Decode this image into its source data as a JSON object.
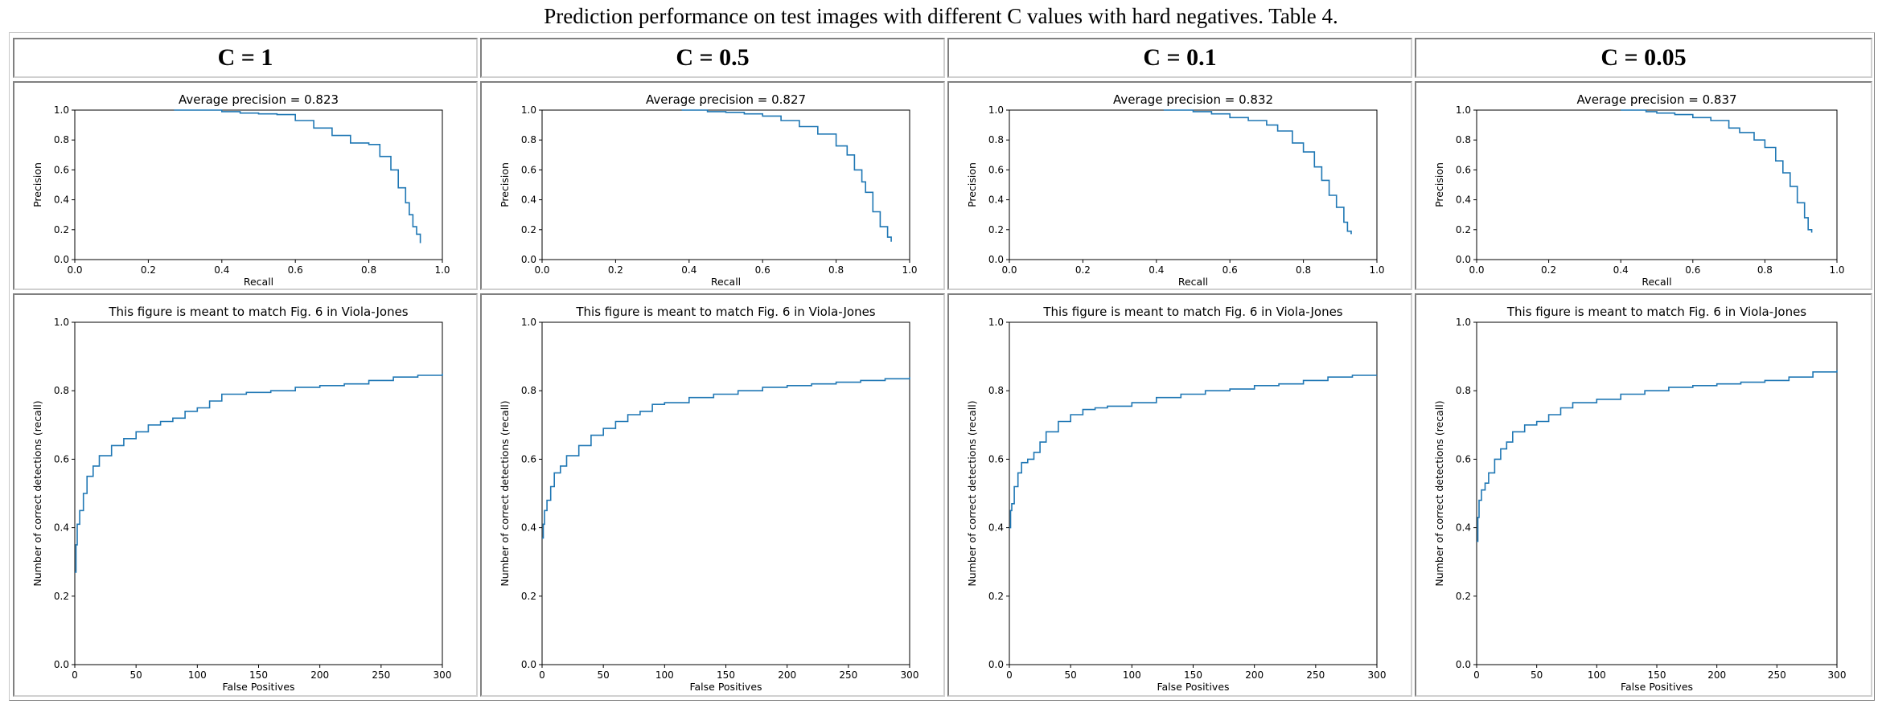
{
  "caption": "Prediction performance on test images with different C values with hard negatives. Table 4.",
  "headers": [
    "C = 1",
    "C = 0.5",
    "C = 0.1",
    "C = 0.05"
  ],
  "colors": {
    "series": "#1f77b4"
  },
  "chart_data": [
    {
      "type": "line",
      "column": "C = 1",
      "title": "Average precision = 0.823",
      "xlabel": "Recall",
      "ylabel": "Precision",
      "xlim": [
        0,
        1
      ],
      "ylim": [
        0,
        1
      ],
      "xticks": [
        "0.0",
        "0.2",
        "0.4",
        "0.6",
        "0.8",
        "1.0"
      ],
      "yticks": [
        "0.0",
        "0.2",
        "0.4",
        "0.6",
        "0.8",
        "1.0"
      ],
      "x": [
        0.27,
        0.35,
        0.4,
        0.45,
        0.5,
        0.55,
        0.6,
        0.65,
        0.7,
        0.75,
        0.8,
        0.83,
        0.86,
        0.88,
        0.9,
        0.91,
        0.92,
        0.93,
        0.94
      ],
      "y": [
        1.0,
        1.0,
        0.99,
        0.98,
        0.975,
        0.97,
        0.93,
        0.88,
        0.83,
        0.78,
        0.77,
        0.69,
        0.6,
        0.48,
        0.38,
        0.3,
        0.22,
        0.17,
        0.11
      ]
    },
    {
      "type": "line",
      "column": "C = 0.5",
      "title": "Average precision = 0.827",
      "xlabel": "Recall",
      "ylabel": "Precision",
      "xlim": [
        0,
        1
      ],
      "ylim": [
        0,
        1
      ],
      "xticks": [
        "0.0",
        "0.2",
        "0.4",
        "0.6",
        "0.8",
        "1.0"
      ],
      "yticks": [
        "0.0",
        "0.2",
        "0.4",
        "0.6",
        "0.8",
        "1.0"
      ],
      "x": [
        0.38,
        0.45,
        0.5,
        0.55,
        0.6,
        0.65,
        0.7,
        0.75,
        0.8,
        0.83,
        0.85,
        0.87,
        0.88,
        0.9,
        0.92,
        0.94,
        0.95
      ],
      "y": [
        1.0,
        0.99,
        0.985,
        0.975,
        0.96,
        0.93,
        0.89,
        0.84,
        0.76,
        0.7,
        0.6,
        0.52,
        0.45,
        0.32,
        0.22,
        0.15,
        0.12
      ]
    },
    {
      "type": "line",
      "column": "C = 0.1",
      "title": "Average precision = 0.832",
      "xlabel": "Recall",
      "ylabel": "Precision",
      "xlim": [
        0,
        1
      ],
      "ylim": [
        0,
        1
      ],
      "xticks": [
        "0.0",
        "0.2",
        "0.4",
        "0.6",
        "0.8",
        "1.0"
      ],
      "yticks": [
        "0.0",
        "0.2",
        "0.4",
        "0.6",
        "0.8",
        "1.0"
      ],
      "x": [
        0.42,
        0.5,
        0.55,
        0.6,
        0.65,
        0.7,
        0.73,
        0.77,
        0.8,
        0.83,
        0.85,
        0.87,
        0.89,
        0.91,
        0.92,
        0.93
      ],
      "y": [
        1.0,
        0.99,
        0.975,
        0.95,
        0.93,
        0.9,
        0.86,
        0.78,
        0.72,
        0.62,
        0.53,
        0.43,
        0.35,
        0.25,
        0.19,
        0.17
      ]
    },
    {
      "type": "line",
      "column": "C = 0.05",
      "title": "Average precision = 0.837",
      "xlabel": "Recall",
      "ylabel": "Precision",
      "xlim": [
        0,
        1
      ],
      "ylim": [
        0,
        1
      ],
      "xticks": [
        "0.0",
        "0.2",
        "0.4",
        "0.6",
        "0.8",
        "1.0"
      ],
      "yticks": [
        "0.0",
        "0.2",
        "0.4",
        "0.6",
        "0.8",
        "1.0"
      ],
      "x": [
        0.4,
        0.47,
        0.5,
        0.55,
        0.6,
        0.65,
        0.7,
        0.73,
        0.77,
        0.8,
        0.83,
        0.85,
        0.87,
        0.89,
        0.91,
        0.92,
        0.93
      ],
      "y": [
        1.0,
        0.99,
        0.98,
        0.97,
        0.95,
        0.93,
        0.88,
        0.85,
        0.8,
        0.75,
        0.66,
        0.58,
        0.49,
        0.38,
        0.28,
        0.2,
        0.18
      ]
    },
    {
      "type": "line",
      "column": "C = 1",
      "title": "This figure is meant to match Fig. 6 in Viola-Jones",
      "xlabel": "False Positives",
      "ylabel": "Number of correct detections (recall)",
      "xlim": [
        0,
        300
      ],
      "ylim": [
        0,
        1
      ],
      "xticks": [
        "0",
        "50",
        "100",
        "150",
        "200",
        "250",
        "300"
      ],
      "yticks": [
        "0.0",
        "0.2",
        "0.4",
        "0.6",
        "0.8",
        "1.0"
      ],
      "x": [
        0,
        1,
        2,
        4,
        7,
        10,
        15,
        20,
        30,
        40,
        50,
        60,
        70,
        80,
        90,
        100,
        110,
        120,
        140,
        160,
        180,
        200,
        220,
        240,
        260,
        280,
        300
      ],
      "y": [
        0.27,
        0.35,
        0.41,
        0.45,
        0.5,
        0.55,
        0.58,
        0.61,
        0.64,
        0.66,
        0.68,
        0.7,
        0.71,
        0.72,
        0.74,
        0.75,
        0.77,
        0.79,
        0.795,
        0.8,
        0.81,
        0.815,
        0.82,
        0.83,
        0.84,
        0.845,
        0.85
      ]
    },
    {
      "type": "line",
      "column": "C = 0.5",
      "title": "This figure is meant to match Fig. 6 in Viola-Jones",
      "xlabel": "False Positives",
      "ylabel": "Number of correct detections (recall)",
      "xlim": [
        0,
        300
      ],
      "ylim": [
        0,
        1
      ],
      "xticks": [
        "0",
        "50",
        "100",
        "150",
        "200",
        "250",
        "300"
      ],
      "yticks": [
        "0.0",
        "0.2",
        "0.4",
        "0.6",
        "0.8",
        "1.0"
      ],
      "x": [
        0,
        1,
        2,
        4,
        7,
        10,
        15,
        20,
        30,
        40,
        50,
        60,
        70,
        80,
        90,
        100,
        120,
        140,
        160,
        180,
        200,
        220,
        240,
        260,
        280,
        300
      ],
      "y": [
        0.37,
        0.41,
        0.45,
        0.48,
        0.52,
        0.56,
        0.58,
        0.61,
        0.64,
        0.67,
        0.69,
        0.71,
        0.73,
        0.74,
        0.76,
        0.765,
        0.78,
        0.79,
        0.8,
        0.81,
        0.815,
        0.82,
        0.825,
        0.83,
        0.835,
        0.84
      ]
    },
    {
      "type": "line",
      "column": "C = 0.1",
      "title": "This figure is meant to match Fig. 6 in Viola-Jones",
      "xlabel": "False Positives",
      "ylabel": "Number of correct detections (recall)",
      "xlim": [
        0,
        300
      ],
      "ylim": [
        0,
        1
      ],
      "xticks": [
        "0",
        "50",
        "100",
        "150",
        "200",
        "250",
        "300"
      ],
      "yticks": [
        "0.0",
        "0.2",
        "0.4",
        "0.6",
        "0.8",
        "1.0"
      ],
      "x": [
        0,
        1,
        2,
        4,
        7,
        10,
        15,
        20,
        25,
        30,
        40,
        50,
        60,
        70,
        80,
        100,
        120,
        140,
        160,
        180,
        200,
        220,
        240,
        260,
        280,
        300
      ],
      "y": [
        0.4,
        0.45,
        0.47,
        0.52,
        0.56,
        0.59,
        0.6,
        0.62,
        0.65,
        0.68,
        0.71,
        0.73,
        0.745,
        0.75,
        0.755,
        0.765,
        0.78,
        0.79,
        0.8,
        0.805,
        0.815,
        0.82,
        0.83,
        0.84,
        0.845,
        0.845
      ]
    },
    {
      "type": "line",
      "column": "C = 0.05",
      "title": "This figure is meant to match Fig. 6 in Viola-Jones",
      "xlabel": "False Positives",
      "ylabel": "Number of correct detections (recall)",
      "xlim": [
        0,
        300
      ],
      "ylim": [
        0,
        1
      ],
      "xticks": [
        "0",
        "50",
        "100",
        "150",
        "200",
        "250",
        "300"
      ],
      "yticks": [
        "0.0",
        "0.2",
        "0.4",
        "0.6",
        "0.8",
        "1.0"
      ],
      "x": [
        0,
        1,
        2,
        4,
        7,
        10,
        15,
        20,
        25,
        30,
        40,
        50,
        60,
        70,
        80,
        100,
        120,
        140,
        160,
        180,
        200,
        220,
        240,
        260,
        280,
        300
      ],
      "y": [
        0.36,
        0.43,
        0.48,
        0.51,
        0.53,
        0.56,
        0.6,
        0.63,
        0.65,
        0.68,
        0.7,
        0.71,
        0.73,
        0.75,
        0.765,
        0.775,
        0.79,
        0.8,
        0.81,
        0.815,
        0.82,
        0.825,
        0.83,
        0.84,
        0.855,
        0.86
      ]
    }
  ]
}
